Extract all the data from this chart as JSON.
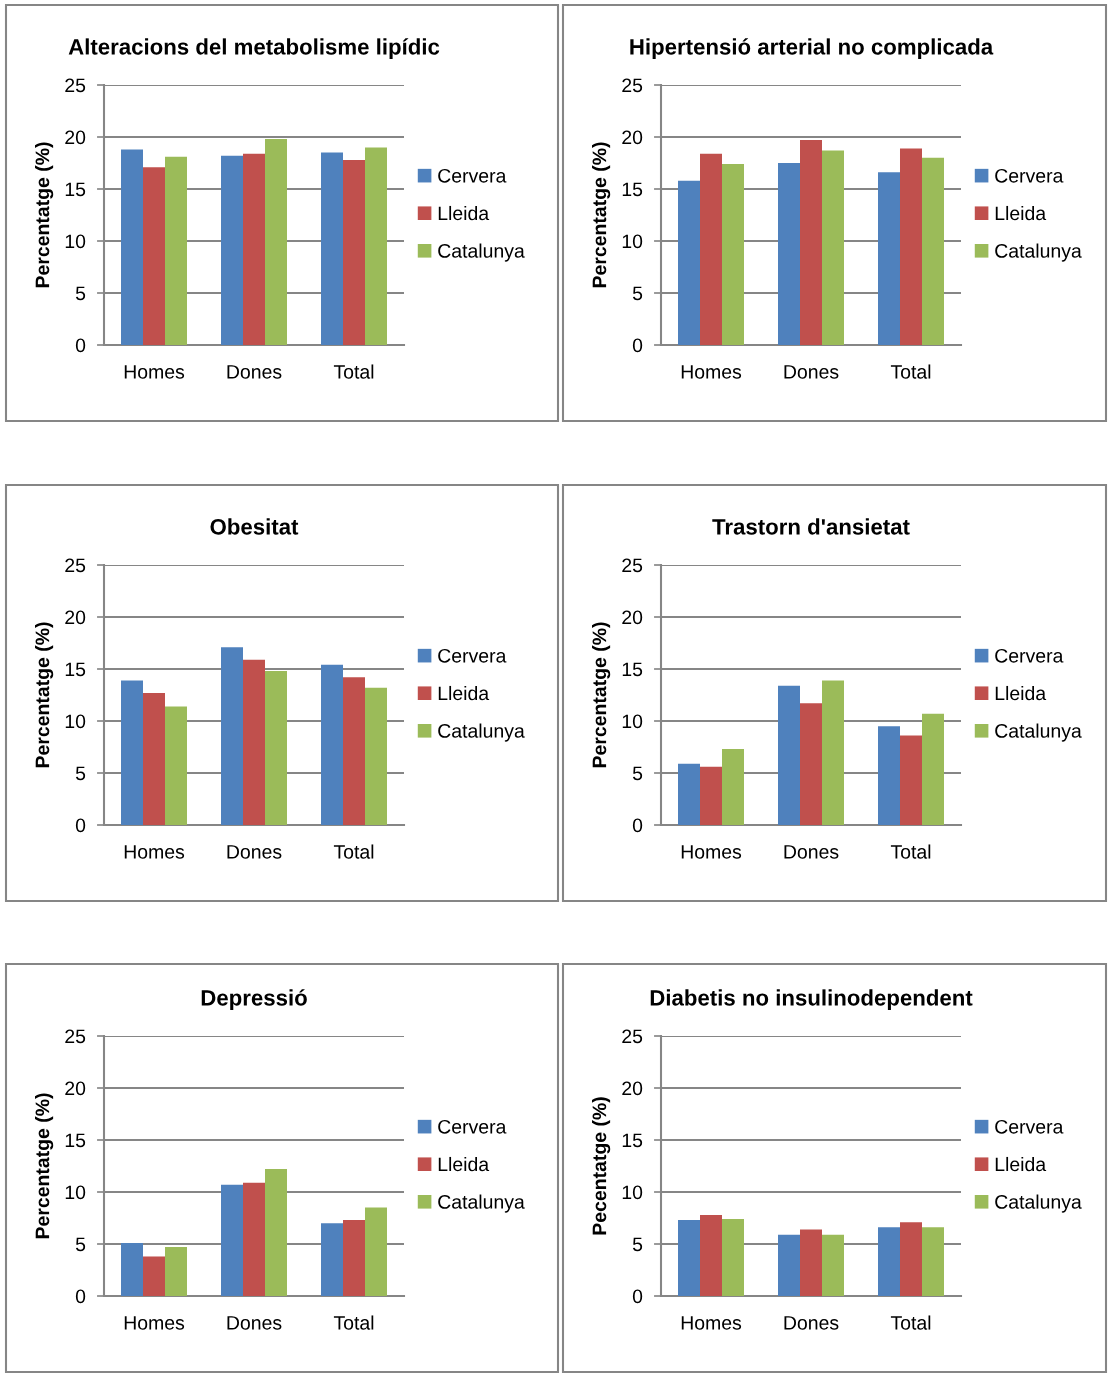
{
  "chart_data": [
    {
      "type": "bar",
      "title": "Alteracions del metabolisme lipídic",
      "ylabel": "Percentatge (%)",
      "categories": [
        "Homes",
        "Dones",
        "Total"
      ],
      "ylim": [
        0,
        25
      ],
      "yticks": [
        0,
        5,
        10,
        15,
        20,
        25
      ],
      "grid": "y",
      "legend": "right",
      "series": [
        {
          "name": "Cervera",
          "color": "#4f81bd",
          "values": [
            18.8,
            18.2,
            18.5
          ]
        },
        {
          "name": "Lleida",
          "color": "#c0504d",
          "values": [
            17.1,
            18.4,
            17.8
          ]
        },
        {
          "name": "Catalunya",
          "color": "#9bbb59",
          "values": [
            18.1,
            19.8,
            19.0
          ]
        }
      ]
    },
    {
      "type": "bar",
      "title": "Hipertensió arterial no complicada",
      "ylabel": "Percentatge (%)",
      "categories": [
        "Homes",
        "Dones",
        "Total"
      ],
      "ylim": [
        0,
        25
      ],
      "yticks": [
        0,
        5,
        10,
        15,
        20,
        25
      ],
      "grid": "y",
      "legend": "right",
      "series": [
        {
          "name": "Cervera",
          "color": "#4f81bd",
          "values": [
            15.8,
            17.5,
            16.6
          ]
        },
        {
          "name": "Lleida",
          "color": "#c0504d",
          "values": [
            18.4,
            19.7,
            18.9
          ]
        },
        {
          "name": "Catalunya",
          "color": "#9bbb59",
          "values": [
            17.4,
            18.7,
            18.0
          ]
        }
      ]
    },
    {
      "type": "bar",
      "title": "Obesitat",
      "ylabel": "Percentatge (%)",
      "categories": [
        "Homes",
        "Dones",
        "Total"
      ],
      "ylim": [
        0,
        25
      ],
      "yticks": [
        0,
        5,
        10,
        15,
        20,
        25
      ],
      "grid": "y",
      "legend": "right",
      "series": [
        {
          "name": "Cervera",
          "color": "#4f81bd",
          "values": [
            13.9,
            17.1,
            15.4
          ]
        },
        {
          "name": "Lleida",
          "color": "#c0504d",
          "values": [
            12.7,
            15.9,
            14.2
          ]
        },
        {
          "name": "Catalunya",
          "color": "#9bbb59",
          "values": [
            11.4,
            14.8,
            13.2
          ]
        }
      ]
    },
    {
      "type": "bar",
      "title": "Trastorn d'ansietat",
      "ylabel": "Percentatge (%)",
      "categories": [
        "Homes",
        "Dones",
        "Total"
      ],
      "ylim": [
        0,
        25
      ],
      "yticks": [
        0,
        5,
        10,
        15,
        20,
        25
      ],
      "grid": "y",
      "legend": "right",
      "series": [
        {
          "name": "Cervera",
          "color": "#4f81bd",
          "values": [
            5.9,
            13.4,
            9.5
          ]
        },
        {
          "name": "Lleida",
          "color": "#c0504d",
          "values": [
            5.6,
            11.7,
            8.6
          ]
        },
        {
          "name": "Catalunya",
          "color": "#9bbb59",
          "values": [
            7.3,
            13.9,
            10.7
          ]
        }
      ]
    },
    {
      "type": "bar",
      "title": "Depressió",
      "ylabel": "Percentatge (%)",
      "categories": [
        "Homes",
        "Dones",
        "Total"
      ],
      "ylim": [
        0,
        25
      ],
      "yticks": [
        0,
        5,
        10,
        15,
        20,
        25
      ],
      "grid": "y",
      "legend": "right",
      "series": [
        {
          "name": "Cervera",
          "color": "#4f81bd",
          "values": [
            5.1,
            10.7,
            7.0
          ]
        },
        {
          "name": "Lleida",
          "color": "#c0504d",
          "values": [
            3.8,
            10.9,
            7.3
          ]
        },
        {
          "name": "Catalunya",
          "color": "#9bbb59",
          "values": [
            4.7,
            12.2,
            8.5
          ]
        }
      ]
    },
    {
      "type": "bar",
      "title": "Diabetis no insulinodependent",
      "ylabel": "Pecentatge (%)",
      "categories": [
        "Homes",
        "Dones",
        "Total"
      ],
      "ylim": [
        0,
        25
      ],
      "yticks": [
        0,
        5,
        10,
        15,
        20,
        25
      ],
      "grid": "y",
      "legend": "right",
      "series": [
        {
          "name": "Cervera",
          "color": "#4f81bd",
          "values": [
            7.3,
            5.9,
            6.6
          ]
        },
        {
          "name": "Lleida",
          "color": "#c0504d",
          "values": [
            7.8,
            6.4,
            7.1
          ]
        },
        {
          "name": "Catalunya",
          "color": "#9bbb59",
          "values": [
            7.4,
            5.9,
            6.6
          ]
        }
      ]
    }
  ]
}
